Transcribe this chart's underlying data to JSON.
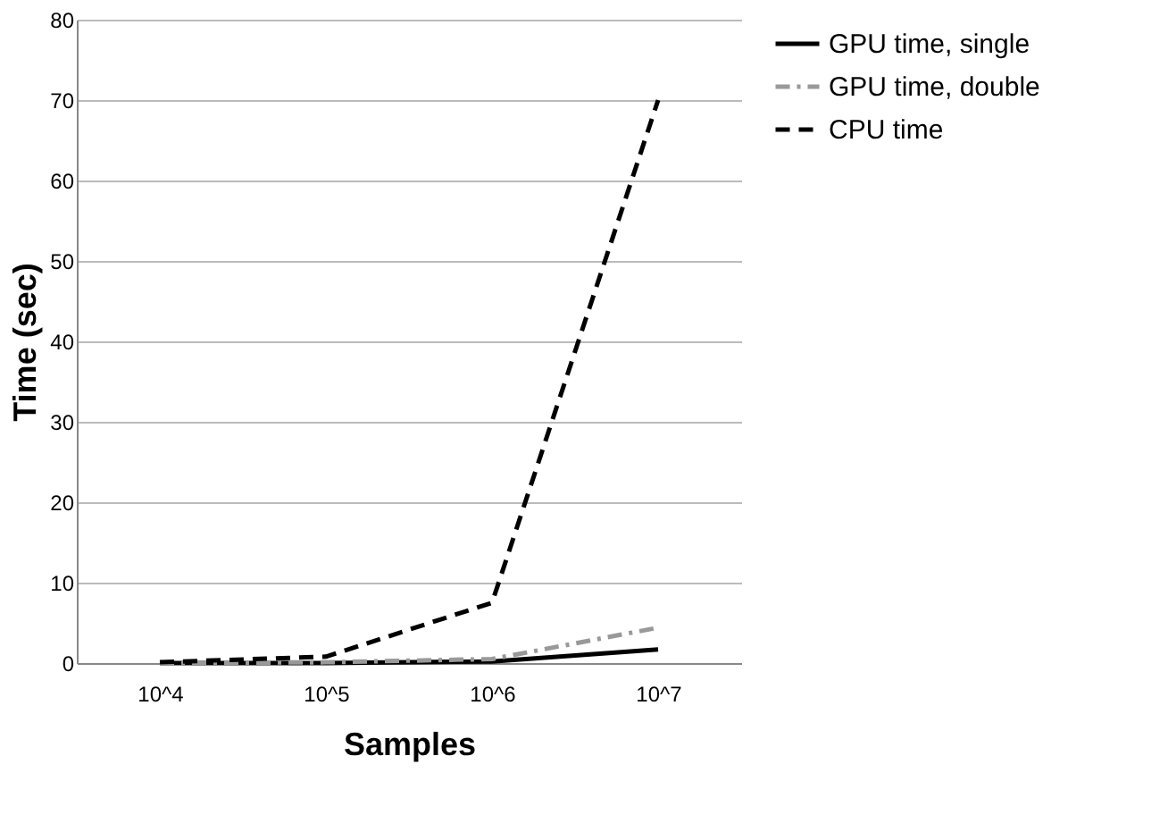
{
  "chart_data": {
    "type": "line",
    "xlabel": "Samples",
    "ylabel": "Time  (sec)",
    "categories": [
      "10^4",
      "10^5",
      "10^6",
      "10^7"
    ],
    "series": [
      {
        "name": "GPU time, single",
        "color": "#000000",
        "line_style": "solid",
        "values": [
          0,
          0,
          0.2,
          1.7
        ]
      },
      {
        "name": "GPU time, double",
        "color": "#999999",
        "line_style": "dashdot",
        "values": [
          0,
          0.1,
          0.5,
          4.4
        ]
      },
      {
        "name": "CPU time",
        "color": "#000000",
        "line_style": "dashed",
        "values": [
          0.1,
          0.8,
          7.5,
          70
        ]
      }
    ],
    "ylim": [
      0,
      80
    ],
    "yticks": [
      0,
      10,
      20,
      30,
      40,
      50,
      60,
      70,
      80
    ],
    "grid": "y",
    "legend": "right",
    "marker": "none"
  }
}
